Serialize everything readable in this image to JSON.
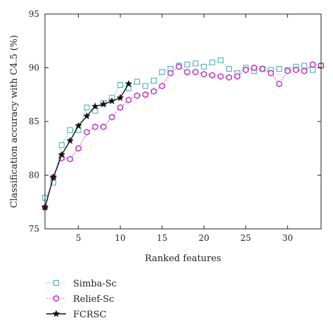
{
  "chart_data": {
    "type": "line",
    "xlabel": "Ranked features",
    "ylabel": "Classification accuracy with C4.5 (%)",
    "xlim": [
      1,
      34
    ],
    "ylim": [
      75,
      95
    ],
    "xticks": [
      5,
      10,
      15,
      20,
      25,
      30
    ],
    "yticks": [
      75,
      80,
      85,
      90,
      95
    ],
    "grid": false,
    "legend_position": "below-left",
    "series": [
      {
        "name": "Simba-Sc",
        "color": "#4bb3b3",
        "line_style": "dotted",
        "marker": "square",
        "x": [
          1,
          2,
          3,
          4,
          5,
          6,
          7,
          8,
          9,
          10,
          11,
          12,
          13,
          14,
          15,
          16,
          17,
          18,
          19,
          20,
          21,
          22,
          23,
          24,
          25,
          26,
          27,
          28,
          29,
          30,
          31,
          32,
          33,
          34
        ],
        "values": [
          77.9,
          79.3,
          82.8,
          84.2,
          84.2,
          86.3,
          86.0,
          86.7,
          87.2,
          88.4,
          88.1,
          88.7,
          88.3,
          88.8,
          89.6,
          89.9,
          90.2,
          90.3,
          90.4,
          90.1,
          90.5,
          90.7,
          89.9,
          89.5,
          90.0,
          89.7,
          89.9,
          89.8,
          89.9,
          89.8,
          90.1,
          90.2,
          89.8,
          90.2
        ]
      },
      {
        "name": "Relief-Sc",
        "color": "#c020c0",
        "line_style": "dotted",
        "marker": "hexagon",
        "x": [
          1,
          2,
          3,
          4,
          5,
          6,
          7,
          8,
          9,
          10,
          11,
          12,
          13,
          14,
          15,
          16,
          17,
          18,
          19,
          20,
          21,
          22,
          23,
          24,
          25,
          26,
          27,
          28,
          29,
          30,
          31,
          32,
          33,
          34
        ],
        "values": [
          77.0,
          79.8,
          81.6,
          81.5,
          82.5,
          84.0,
          84.5,
          84.5,
          85.4,
          86.3,
          87.0,
          87.4,
          87.5,
          87.8,
          88.3,
          89.5,
          90.1,
          89.6,
          89.6,
          89.4,
          89.3,
          89.2,
          89.1,
          89.2,
          89.8,
          90.0,
          89.9,
          89.5,
          88.5,
          89.7,
          89.8,
          89.7,
          90.3,
          90.2
        ]
      },
      {
        "name": "FCRSC",
        "color": "#111111",
        "line_style": "solid",
        "marker": "star",
        "x": [
          1,
          2,
          3,
          4,
          5,
          6,
          7,
          8,
          9,
          10,
          11
        ],
        "values": [
          77.0,
          79.8,
          81.9,
          83.2,
          84.6,
          85.5,
          86.4,
          86.6,
          86.9,
          87.2,
          88.5
        ]
      }
    ]
  }
}
